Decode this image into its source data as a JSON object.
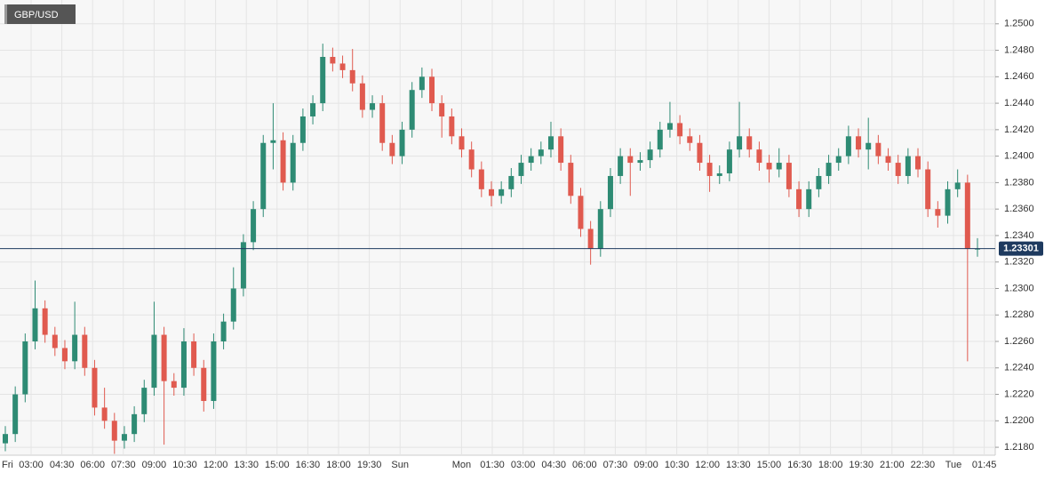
{
  "chart_data": {
    "type": "candlestick",
    "title": "GBP/USD",
    "up_color": "#2e8b74",
    "down_color": "#e05a4f",
    "grid": true,
    "ylim": [
      1.2174,
      1.2518
    ],
    "yticks": [
      {
        "value": 1.218,
        "label": "1.2180"
      },
      {
        "value": 1.22,
        "label": "1.2200"
      },
      {
        "value": 1.222,
        "label": "1.2220"
      },
      {
        "value": 1.224,
        "label": "1.2240"
      },
      {
        "value": 1.226,
        "label": "1.2260"
      },
      {
        "value": 1.228,
        "label": "1.2280"
      },
      {
        "value": 1.23,
        "label": "1.2300"
      },
      {
        "value": 1.232,
        "label": "1.2320"
      },
      {
        "value": 1.234,
        "label": "1.2340"
      },
      {
        "value": 1.236,
        "label": "1.2360"
      },
      {
        "value": 1.238,
        "label": "1.2380"
      },
      {
        "value": 1.24,
        "label": "1.2400"
      },
      {
        "value": 1.242,
        "label": "1.2420"
      },
      {
        "value": 1.244,
        "label": "1.2440"
      },
      {
        "value": 1.246,
        "label": "1.2460"
      },
      {
        "value": 1.248,
        "label": "1.2480"
      },
      {
        "value": 1.25,
        "label": "1.2500"
      }
    ],
    "xtick_labels": [
      "Fri",
      "03:00",
      "04:30",
      "06:00",
      "07:30",
      "09:00",
      "10:30",
      "12:00",
      "13:30",
      "15:00",
      "16:30",
      "18:00",
      "19:30",
      "Sun",
      null,
      "Mon",
      "01:30",
      "03:00",
      "04:30",
      "06:00",
      "07:30",
      "09:00",
      "10:30",
      "12:00",
      "13:30",
      "15:00",
      "16:30",
      "18:00",
      "19:30",
      "21:00",
      "22:30",
      "Tue",
      "01:45"
    ],
    "current_price": 1.23301,
    "open": [
      1.2183,
      1.219,
      1.222,
      1.226,
      1.2285,
      1.2265,
      1.2255,
      1.2245,
      1.2265,
      1.224,
      1.221,
      1.22,
      1.2185,
      1.219,
      1.2205,
      1.2225,
      1.2265,
      1.223,
      1.2225,
      1.226,
      1.224,
      1.2215,
      1.226,
      1.2275,
      1.23,
      1.2335,
      1.236,
      1.241,
      1.2412,
      1.238,
      1.241,
      1.243,
      1.244,
      1.2475,
      1.247,
      1.2465,
      1.2455,
      1.2435,
      1.244,
      1.241,
      1.24,
      1.242,
      1.245,
      1.246,
      1.244,
      1.243,
      1.2415,
      1.2405,
      1.239,
      1.2375,
      1.237,
      1.2375,
      1.2385,
      1.2395,
      1.24,
      1.2405,
      1.2415,
      1.2395,
      1.237,
      1.2345,
      1.233,
      1.236,
      1.2385,
      1.24,
      1.2395,
      1.2397,
      1.2405,
      1.242,
      1.2425,
      1.2415,
      1.241,
      1.2395,
      1.2385,
      1.2387,
      1.2405,
      1.2415,
      1.2405,
      1.2395,
      1.239,
      1.2395,
      1.2375,
      1.236,
      1.2375,
      1.2385,
      1.2395,
      1.24,
      1.2415,
      1.2405,
      1.241,
      1.24,
      1.2395,
      1.2385,
      1.24,
      1.239,
      1.236,
      1.2355,
      1.2375,
      1.238,
      1.233
    ],
    "high": [
      1.2196,
      1.2226,
      1.2266,
      1.2306,
      1.2291,
      1.2271,
      1.2261,
      1.229,
      1.2271,
      1.2246,
      1.2225,
      1.2206,
      1.2196,
      1.2211,
      1.2231,
      1.229,
      1.2271,
      1.2236,
      1.227,
      1.2266,
      1.2246,
      1.2266,
      1.2281,
      1.2316,
      1.2341,
      1.2366,
      1.2416,
      1.244,
      1.2418,
      1.2416,
      1.2436,
      1.2446,
      1.2485,
      1.2482,
      1.2476,
      1.2481,
      1.2461,
      1.2446,
      1.2446,
      1.2416,
      1.2426,
      1.2456,
      1.2467,
      1.2466,
      1.2446,
      1.2436,
      1.2421,
      1.2411,
      1.2396,
      1.2381,
      1.2381,
      1.2391,
      1.2401,
      1.2406,
      1.2411,
      1.2426,
      1.2421,
      1.2401,
      1.2376,
      1.2351,
      1.2366,
      1.2391,
      1.2406,
      1.2406,
      1.2403,
      1.2411,
      1.2426,
      1.2441,
      1.2431,
      1.2421,
      1.2416,
      1.2401,
      1.2393,
      1.2411,
      1.2441,
      1.2421,
      1.2411,
      1.2401,
      1.2406,
      1.2401,
      1.2381,
      1.2381,
      1.2391,
      1.2401,
      1.2406,
      1.2423,
      1.2421,
      1.2429,
      1.2416,
      1.2406,
      1.2401,
      1.2406,
      1.2406,
      1.2396,
      1.2366,
      1.2381,
      1.239,
      1.2386,
      1.2338
    ],
    "low": [
      1.2177,
      1.2184,
      1.2214,
      1.2254,
      1.2259,
      1.2249,
      1.2239,
      1.2239,
      1.2234,
      1.2204,
      1.2194,
      1.2175,
      1.2179,
      1.2184,
      1.2199,
      1.2219,
      1.2182,
      1.2219,
      1.2219,
      1.2234,
      1.2207,
      1.2209,
      1.2254,
      1.2269,
      1.2294,
      1.2329,
      1.2354,
      1.239,
      1.2374,
      1.2374,
      1.2404,
      1.2424,
      1.2434,
      1.2464,
      1.2459,
      1.2449,
      1.2429,
      1.2429,
      1.2404,
      1.2394,
      1.2394,
      1.2414,
      1.2444,
      1.2434,
      1.2414,
      1.2409,
      1.2399,
      1.2384,
      1.2369,
      1.2362,
      1.2364,
      1.2369,
      1.2379,
      1.2389,
      1.2394,
      1.2399,
      1.2389,
      1.2364,
      1.2339,
      1.2318,
      1.2324,
      1.2354,
      1.2379,
      1.237,
      1.2389,
      1.2391,
      1.2399,
      1.2414,
      1.2409,
      1.2404,
      1.2389,
      1.2373,
      1.2379,
      1.2381,
      1.2399,
      1.2399,
      1.2389,
      1.238,
      1.2384,
      1.2369,
      1.2354,
      1.2354,
      1.2369,
      1.2379,
      1.2389,
      1.2394,
      1.2399,
      1.239,
      1.2394,
      1.2389,
      1.2379,
      1.2379,
      1.2384,
      1.2354,
      1.2346,
      1.2349,
      1.2369,
      1.2245,
      1.2324
    ],
    "close": [
      1.219,
      1.222,
      1.226,
      1.2285,
      1.2265,
      1.2255,
      1.2245,
      1.2265,
      1.224,
      1.221,
      1.22,
      1.2185,
      1.219,
      1.2205,
      1.2225,
      1.2265,
      1.223,
      1.2225,
      1.226,
      1.224,
      1.2215,
      1.226,
      1.2275,
      1.23,
      1.2335,
      1.236,
      1.241,
      1.2412,
      1.238,
      1.241,
      1.243,
      1.244,
      1.2475,
      1.247,
      1.2465,
      1.2455,
      1.2435,
      1.244,
      1.241,
      1.24,
      1.242,
      1.245,
      1.246,
      1.244,
      1.243,
      1.2415,
      1.2405,
      1.239,
      1.2375,
      1.237,
      1.2375,
      1.2385,
      1.2395,
      1.24,
      1.2405,
      1.2415,
      1.2395,
      1.237,
      1.2345,
      1.233,
      1.236,
      1.2385,
      1.24,
      1.2395,
      1.2397,
      1.2405,
      1.242,
      1.2425,
      1.2415,
      1.241,
      1.2395,
      1.2385,
      1.2387,
      1.2405,
      1.2415,
      1.2405,
      1.2395,
      1.239,
      1.2395,
      1.2375,
      1.236,
      1.2375,
      1.2385,
      1.2395,
      1.24,
      1.2415,
      1.2405,
      1.241,
      1.24,
      1.2395,
      1.2385,
      1.24,
      1.239,
      1.236,
      1.2355,
      1.2375,
      1.238,
      1.233,
      1.23301
    ]
  }
}
